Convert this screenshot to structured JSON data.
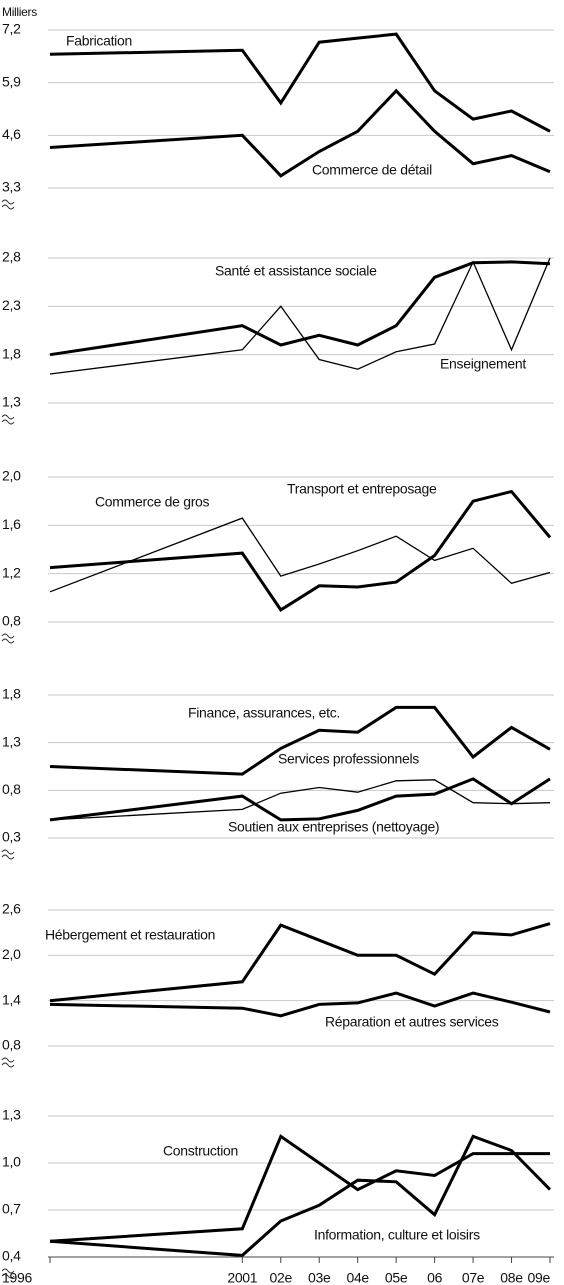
{
  "chart_data": [
    {
      "type": "line",
      "ylabel": "Milliers",
      "x": [
        1996,
        2001,
        2002,
        2003,
        2004,
        2005,
        2006,
        2007,
        2008,
        2009
      ],
      "xlim": [
        1996,
        2009
      ],
      "ylim": [
        3.3,
        7.2
      ],
      "yticks": [
        {
          "value": 3.3,
          "label": "3,3"
        },
        {
          "value": 4.6,
          "label": "4,6"
        },
        {
          "value": 5.9,
          "label": "5,9"
        },
        {
          "value": 7.2,
          "label": "7,2"
        }
      ],
      "grid": true,
      "series": [
        {
          "name": "Fabrication",
          "color": "#000000",
          "values": [
            6.6,
            6.7,
            5.4,
            6.9,
            7.0,
            7.1,
            5.7,
            5.0,
            5.2,
            4.7
          ]
        },
        {
          "name": "Commerce de détail",
          "color": "#000000",
          "values": [
            4.3,
            4.6,
            3.6,
            4.2,
            4.7,
            5.7,
            4.7,
            3.9,
            4.1,
            3.7
          ]
        }
      ]
    },
    {
      "type": "line",
      "x": [
        1996,
        2001,
        2002,
        2003,
        2004,
        2005,
        2006,
        2007,
        2008,
        2009
      ],
      "xlim": [
        1996,
        2009
      ],
      "ylim": [
        1.3,
        2.8
      ],
      "yticks": [
        {
          "value": 1.3,
          "label": "1,3"
        },
        {
          "value": 1.8,
          "label": "1,8"
        },
        {
          "value": 2.3,
          "label": "2,3"
        },
        {
          "value": 2.8,
          "label": "2,8"
        }
      ],
      "grid": true,
      "series": [
        {
          "name": "Santé et assistance sociale",
          "color": "#000000",
          "values": [
            1.8,
            2.1,
            1.9,
            2.0,
            1.9,
            2.1,
            2.6,
            2.75,
            2.76,
            2.74
          ]
        },
        {
          "name": "Enseignement",
          "color": "#000000",
          "values": [
            1.6,
            1.85,
            2.3,
            1.75,
            1.65,
            1.83,
            1.91,
            2.76,
            1.85,
            2.8
          ]
        }
      ]
    },
    {
      "type": "line",
      "x": [
        1996,
        2001,
        2002,
        2003,
        2004,
        2005,
        2006,
        2007,
        2008,
        2009
      ],
      "xlim": [
        1996,
        2009
      ],
      "ylim": [
        0.8,
        2.0
      ],
      "yticks": [
        {
          "value": 0.8,
          "label": "0,8"
        },
        {
          "value": 1.2,
          "label": "1,2"
        },
        {
          "value": 1.6,
          "label": "1,6"
        },
        {
          "value": 2.0,
          "label": "2,0"
        }
      ],
      "grid": true,
      "series": [
        {
          "name": "Commerce de gros",
          "color": "#000000",
          "values": [
            1.05,
            1.66,
            1.18,
            1.28,
            1.39,
            1.51,
            1.31,
            1.41,
            1.12,
            1.21
          ]
        },
        {
          "name": "Transport et entreposage",
          "color": "#000000",
          "values": [
            1.25,
            1.37,
            0.9,
            1.1,
            1.09,
            1.13,
            1.35,
            1.8,
            1.88,
            1.5
          ]
        }
      ]
    },
    {
      "type": "line",
      "x": [
        1996,
        2001,
        2002,
        2003,
        2004,
        2005,
        2006,
        2007,
        2008,
        2009
      ],
      "xlim": [
        1996,
        2009
      ],
      "ylim": [
        0.3,
        1.8
      ],
      "yticks": [
        {
          "value": 0.3,
          "label": "0,3"
        },
        {
          "value": 0.8,
          "label": "0,8"
        },
        {
          "value": 1.3,
          "label": "1,3"
        },
        {
          "value": 1.8,
          "label": "1,8"
        }
      ],
      "grid": true,
      "series": [
        {
          "name": "Finance, assurances, etc.",
          "color": "#000000",
          "values": [
            1.05,
            0.97,
            1.24,
            1.43,
            1.41,
            1.67,
            1.67,
            1.15,
            1.46,
            1.23
          ]
        },
        {
          "name": "Services professionnels",
          "color": "#000000",
          "values": [
            0.49,
            0.6,
            0.77,
            0.83,
            0.78,
            0.9,
            0.91,
            0.67,
            0.66,
            0.67
          ]
        },
        {
          "name": "Soutien aux entreprises (nettoyage)",
          "color": "#000000",
          "values": [
            0.49,
            0.74,
            0.49,
            0.5,
            0.59,
            0.74,
            0.76,
            0.92,
            0.66,
            0.92
          ]
        }
      ]
    },
    {
      "type": "line",
      "x": [
        1996,
        2001,
        2002,
        2003,
        2004,
        2005,
        2006,
        2007,
        2008,
        2009
      ],
      "xlim": [
        1996,
        2009
      ],
      "ylim": [
        0.8,
        2.6
      ],
      "yticks": [
        {
          "value": 0.8,
          "label": "0,8"
        },
        {
          "value": 1.4,
          "label": "1,4"
        },
        {
          "value": 2.0,
          "label": "2,0"
        },
        {
          "value": 2.6,
          "label": "2,6"
        }
      ],
      "grid": true,
      "series": [
        {
          "name": "Hébergement et restauration",
          "color": "#000000",
          "values": [
            1.4,
            1.65,
            2.4,
            2.2,
            2.0,
            2.0,
            1.75,
            2.3,
            2.27,
            2.42
          ]
        },
        {
          "name": "Réparation et autres services",
          "color": "#000000",
          "values": [
            1.35,
            1.3,
            1.2,
            1.35,
            1.37,
            1.5,
            1.33,
            1.5,
            1.38,
            1.25
          ]
        }
      ]
    },
    {
      "type": "line",
      "x": [
        1996,
        2001,
        2002,
        2003,
        2004,
        2005,
        2006,
        2007,
        2008,
        2009
      ],
      "xlim": [
        1996,
        2009
      ],
      "xticks": [
        1996,
        2001,
        {
          "value": 2002,
          "label": "02e"
        },
        {
          "value": 2003,
          "label": "03e"
        },
        {
          "value": 2004,
          "label": "04e"
        },
        {
          "value": 2005,
          "label": "05e"
        },
        {
          "value": 2006,
          "label": "06"
        },
        {
          "value": 2007,
          "label": "07e"
        },
        {
          "value": 2008,
          "label": "08e"
        },
        {
          "value": 2009,
          "label": "09e"
        }
      ],
      "ylim": [
        0.4,
        1.3
      ],
      "yticks": [
        {
          "value": 0.4,
          "label": "0,4"
        },
        {
          "value": 0.7,
          "label": "0,7"
        },
        {
          "value": 1.0,
          "label": "1,0"
        },
        {
          "value": 1.3,
          "label": "1,3"
        }
      ],
      "grid": true,
      "series": [
        {
          "name": "Construction",
          "color": "#000000",
          "values": [
            0.5,
            0.58,
            1.17,
            1.0,
            0.83,
            0.95,
            0.92,
            1.06,
            1.06,
            1.06
          ]
        },
        {
          "name": "Information, culture et loisirs",
          "color": "#000000",
          "values": [
            0.5,
            0.41,
            0.63,
            0.73,
            0.89,
            0.88,
            0.67,
            1.17,
            1.08,
            0.83
          ]
        }
      ]
    }
  ]
}
